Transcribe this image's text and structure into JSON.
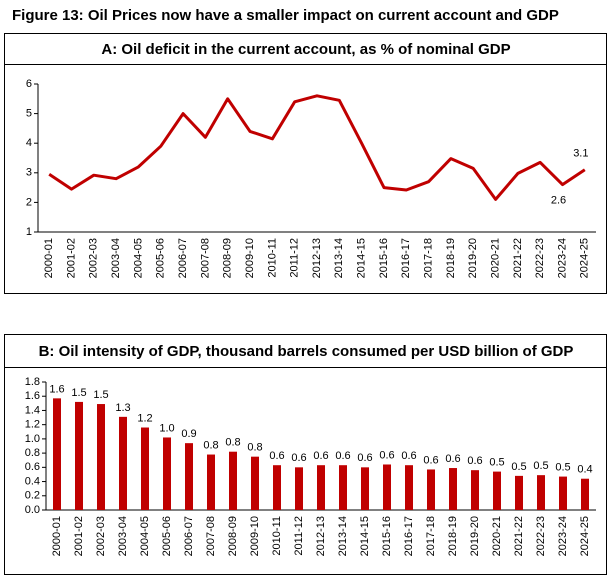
{
  "title": "Figure 13: Oil Prices now have a smaller impact on current account and GDP",
  "chart_data": [
    {
      "type": "line",
      "title": "A: Oil deficit in the current account, as % of nominal GDP",
      "categories": [
        "2000-01",
        "2001-02",
        "2002-03",
        "2003-04",
        "2004-05",
        "2005-06",
        "2006-07",
        "2007-08",
        "2008-09",
        "2009-10",
        "2010-11",
        "2011-12",
        "2012-13",
        "2013-14",
        "2014-15",
        "2015-16",
        "2016-17",
        "2017-18",
        "2018-19",
        "2019-20",
        "2020-21",
        "2021-22",
        "2022-23",
        "2023-24",
        "2024-25"
      ],
      "values": [
        2.95,
        2.45,
        2.92,
        2.8,
        3.2,
        3.9,
        5.0,
        4.2,
        5.5,
        4.4,
        4.15,
        5.4,
        5.6,
        5.45,
        4.0,
        2.5,
        2.42,
        2.7,
        3.48,
        3.15,
        2.1,
        2.98,
        3.35,
        2.6,
        3.1
      ],
      "value_labels": [
        null,
        null,
        null,
        null,
        null,
        null,
        null,
        null,
        null,
        null,
        null,
        null,
        null,
        null,
        null,
        null,
        null,
        null,
        null,
        null,
        null,
        null,
        null,
        "2.6",
        "3.1"
      ],
      "color": "#c00000",
      "ylim": [
        1,
        6
      ],
      "yticks": [
        1,
        2,
        3,
        4,
        5,
        6
      ]
    },
    {
      "type": "bar",
      "title": "B: Oil intensity of GDP, thousand barrels consumed per USD billion of GDP",
      "categories": [
        "2000-01",
        "2001-02",
        "2002-03",
        "2003-04",
        "2004-05",
        "2005-06",
        "2006-07",
        "2007-08",
        "2008-09",
        "2009-10",
        "2010-11",
        "2011-12",
        "2012-13",
        "2013-14",
        "2014-15",
        "2015-16",
        "2016-17",
        "2017-18",
        "2018-19",
        "2019-20",
        "2020-21",
        "2021-22",
        "2022-23",
        "2023-24",
        "2024-25"
      ],
      "values": [
        1.57,
        1.52,
        1.49,
        1.31,
        1.16,
        1.02,
        0.94,
        0.78,
        0.82,
        0.75,
        0.63,
        0.6,
        0.63,
        0.63,
        0.6,
        0.64,
        0.63,
        0.57,
        0.59,
        0.56,
        0.54,
        0.48,
        0.49,
        0.47,
        0.44
      ],
      "value_labels": [
        "1.6",
        "1.5",
        "1.5",
        "1.3",
        "1.2",
        "1.0",
        "0.9",
        "0.8",
        "0.8",
        "0.8",
        "0.6",
        "0.6",
        "0.6",
        "0.6",
        "0.6",
        "0.6",
        "0.6",
        "0.6",
        "0.6",
        "0.6",
        "0.5",
        "0.5",
        "0.5",
        "0.5",
        "0.4"
      ],
      "color": "#c00000",
      "ylim": [
        0,
        1.8
      ],
      "yticks": [
        {
          "value": 0,
          "label": "0.0"
        },
        0.2,
        0.4,
        0.6,
        0.8,
        {
          "value": 1,
          "label": "1.0"
        },
        1.2,
        1.4,
        1.6,
        1.8
      ]
    }
  ]
}
